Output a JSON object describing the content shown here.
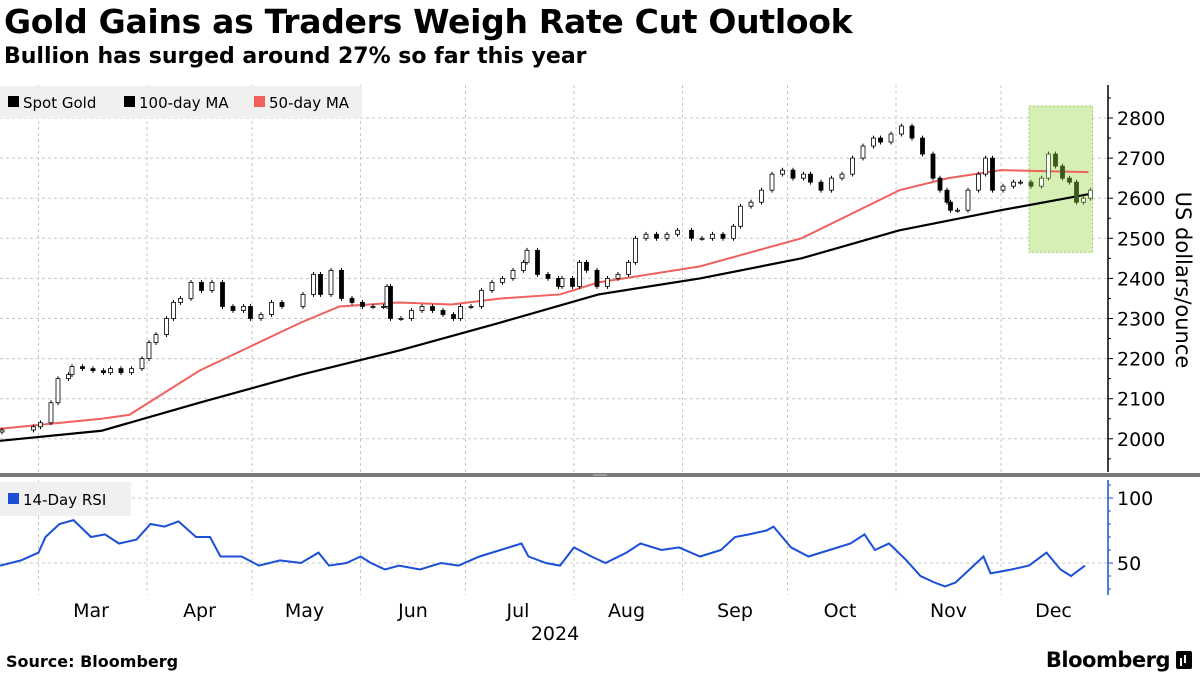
{
  "title": "Gold Gains as Traders Weigh Rate Cut Outlook",
  "subtitle": "Bullion has surged around 27% so far this year",
  "source": "Source: Bloomberg",
  "logo": "Bloomberg",
  "colors": {
    "spot": "#000000",
    "ma100": "#000000",
    "ma50": "#f0605d",
    "rsi": "#1a4fd6",
    "highlight": "#d6efb5",
    "highlight_border": "#9acd5a",
    "highlight_candle": "#3a5a1a"
  },
  "chart_data": [
    {
      "type": "candlestick",
      "x_unit": "days since Feb 19, 2024",
      "ylabel": "US dollars/ounce",
      "ylim": [
        1920,
        2920
      ],
      "yticks": [
        2000,
        2100,
        2200,
        2300,
        2400,
        2500,
        2600,
        2700,
        2800
      ],
      "legend": [
        "Spot Gold",
        "100-day MA",
        "50-day MA"
      ],
      "legend_placement": "top-left",
      "highlight": {
        "day_range": [
          294,
          311
        ],
        "value_range": [
          2465,
          2830
        ]
      },
      "spot_close": [
        [
          0,
          2022
        ],
        [
          9,
          2030
        ],
        [
          11,
          2040
        ],
        [
          14,
          2090
        ],
        [
          16,
          2150
        ],
        [
          19,
          2160
        ],
        [
          20,
          2180
        ],
        [
          23,
          2175
        ],
        [
          26,
          2170
        ],
        [
          29,
          2165
        ],
        [
          31,
          2175
        ],
        [
          34,
          2165
        ],
        [
          37,
          2175
        ],
        [
          40,
          2200
        ],
        [
          42,
          2240
        ],
        [
          44,
          2260
        ],
        [
          47,
          2300
        ],
        [
          49,
          2340
        ],
        [
          51,
          2350
        ],
        [
          54,
          2390
        ],
        [
          57,
          2370
        ],
        [
          60,
          2390
        ],
        [
          63,
          2330
        ],
        [
          66,
          2320
        ],
        [
          69,
          2330
        ],
        [
          71,
          2300
        ],
        [
          74,
          2310
        ],
        [
          77,
          2340
        ],
        [
          80,
          2330
        ],
        [
          86,
          2360
        ],
        [
          89,
          2410
        ],
        [
          91,
          2360
        ],
        [
          94,
          2420
        ],
        [
          97,
          2350
        ],
        [
          100,
          2340
        ],
        [
          103,
          2330
        ],
        [
          106,
          2330
        ],
        [
          109,
          2330
        ],
        [
          110,
          2380
        ],
        [
          111,
          2300
        ],
        [
          114,
          2300
        ],
        [
          117,
          2320
        ],
        [
          120,
          2330
        ],
        [
          123,
          2320
        ],
        [
          126,
          2310
        ],
        [
          129,
          2300
        ],
        [
          131,
          2330
        ],
        [
          134,
          2330
        ],
        [
          137,
          2370
        ],
        [
          140,
          2390
        ],
        [
          143,
          2400
        ],
        [
          146,
          2420
        ],
        [
          149,
          2440
        ],
        [
          150,
          2470
        ],
        [
          153,
          2410
        ],
        [
          156,
          2400
        ],
        [
          159,
          2380
        ],
        [
          160,
          2400
        ],
        [
          163,
          2380
        ],
        [
          165,
          2440
        ],
        [
          167,
          2420
        ],
        [
          170,
          2380
        ],
        [
          173,
          2400
        ],
        [
          176,
          2410
        ],
        [
          179,
          2440
        ],
        [
          181,
          2500
        ],
        [
          184,
          2510
        ],
        [
          187,
          2500
        ],
        [
          190,
          2510
        ],
        [
          193,
          2520
        ],
        [
          197,
          2500
        ],
        [
          200,
          2500
        ],
        [
          203,
          2510
        ],
        [
          206,
          2500
        ],
        [
          209,
          2530
        ],
        [
          211,
          2580
        ],
        [
          214,
          2590
        ],
        [
          217,
          2620
        ],
        [
          220,
          2660
        ],
        [
          223,
          2670
        ],
        [
          226,
          2650
        ],
        [
          229,
          2660
        ],
        [
          231,
          2640
        ],
        [
          234,
          2620
        ],
        [
          237,
          2650
        ],
        [
          240,
          2660
        ],
        [
          243,
          2700
        ],
        [
          246,
          2730
        ],
        [
          249,
          2750
        ],
        [
          251,
          2740
        ],
        [
          254,
          2760
        ],
        [
          257,
          2780
        ],
        [
          260,
          2750
        ],
        [
          263,
          2710
        ],
        [
          266,
          2650
        ],
        [
          268,
          2620
        ],
        [
          270,
          2590
        ],
        [
          271,
          2570
        ],
        [
          273,
          2570
        ],
        [
          276,
          2620
        ],
        [
          279,
          2660
        ],
        [
          281,
          2700
        ],
        [
          283,
          2620
        ],
        [
          286,
          2630
        ],
        [
          289,
          2640
        ],
        [
          291,
          2640
        ],
        [
          294,
          2630
        ],
        [
          297,
          2650
        ],
        [
          299,
          2710
        ],
        [
          301,
          2680
        ],
        [
          303,
          2650
        ],
        [
          305,
          2640
        ],
        [
          307,
          2590
        ],
        [
          309,
          2600
        ],
        [
          311,
          2620
        ]
      ],
      "ma100": [
        [
          0,
          1995
        ],
        [
          29,
          2020
        ],
        [
          57,
          2090
        ],
        [
          86,
          2160
        ],
        [
          114,
          2220
        ],
        [
          143,
          2290
        ],
        [
          171,
          2360
        ],
        [
          200,
          2400
        ],
        [
          229,
          2450
        ],
        [
          257,
          2520
        ],
        [
          286,
          2570
        ],
        [
          311,
          2610
        ]
      ],
      "ma50": [
        [
          0,
          2025
        ],
        [
          29,
          2050
        ],
        [
          37,
          2060
        ],
        [
          57,
          2170
        ],
        [
          86,
          2290
        ],
        [
          97,
          2330
        ],
        [
          114,
          2340
        ],
        [
          129,
          2335
        ],
        [
          143,
          2350
        ],
        [
          160,
          2360
        ],
        [
          171,
          2390
        ],
        [
          200,
          2430
        ],
        [
          229,
          2500
        ],
        [
          243,
          2560
        ],
        [
          257,
          2620
        ],
        [
          271,
          2650
        ],
        [
          286,
          2670
        ],
        [
          311,
          2665
        ]
      ]
    },
    {
      "type": "line",
      "legend": [
        "14-Day RSI"
      ],
      "ylim": [
        25,
        115
      ],
      "yticks": [
        50,
        100
      ],
      "values": [
        [
          0,
          48
        ],
        [
          6,
          52
        ],
        [
          11,
          58
        ],
        [
          13,
          70
        ],
        [
          17,
          80
        ],
        [
          21,
          83
        ],
        [
          26,
          70
        ],
        [
          30,
          72
        ],
        [
          34,
          65
        ],
        [
          39,
          68
        ],
        [
          43,
          80
        ],
        [
          47,
          78
        ],
        [
          51,
          82
        ],
        [
          56,
          70
        ],
        [
          60,
          70
        ],
        [
          63,
          55
        ],
        [
          69,
          55
        ],
        [
          74,
          48
        ],
        [
          80,
          52
        ],
        [
          86,
          50
        ],
        [
          91,
          58
        ],
        [
          94,
          48
        ],
        [
          99,
          50
        ],
        [
          103,
          55
        ],
        [
          106,
          50
        ],
        [
          110,
          45
        ],
        [
          114,
          48
        ],
        [
          120,
          45
        ],
        [
          126,
          50
        ],
        [
          131,
          48
        ],
        [
          137,
          55
        ],
        [
          143,
          60
        ],
        [
          149,
          65
        ],
        [
          151,
          55
        ],
        [
          156,
          50
        ],
        [
          160,
          48
        ],
        [
          164,
          62
        ],
        [
          169,
          55
        ],
        [
          173,
          50
        ],
        [
          179,
          58
        ],
        [
          183,
          65
        ],
        [
          189,
          60
        ],
        [
          194,
          62
        ],
        [
          200,
          55
        ],
        [
          206,
          60
        ],
        [
          210,
          70
        ],
        [
          214,
          72
        ],
        [
          219,
          75
        ],
        [
          221,
          78
        ],
        [
          226,
          62
        ],
        [
          231,
          55
        ],
        [
          237,
          60
        ],
        [
          243,
          65
        ],
        [
          247,
          72
        ],
        [
          250,
          60
        ],
        [
          254,
          65
        ],
        [
          259,
          52
        ],
        [
          263,
          40
        ],
        [
          267,
          35
        ],
        [
          270,
          32
        ],
        [
          273,
          35
        ],
        [
          277,
          45
        ],
        [
          281,
          55
        ],
        [
          283,
          42
        ],
        [
          289,
          45
        ],
        [
          294,
          48
        ],
        [
          299,
          58
        ],
        [
          303,
          45
        ],
        [
          306,
          40
        ],
        [
          310,
          48
        ]
      ]
    }
  ],
  "x_axis": {
    "months": [
      {
        "label": "Mar",
        "start": 11
      },
      {
        "label": "Apr",
        "start": 42
      },
      {
        "label": "May",
        "start": 72
      },
      {
        "label": "Jun",
        "start": 103
      },
      {
        "label": "Jul",
        "start": 133
      },
      {
        "label": "Aug",
        "start": 164
      },
      {
        "label": "Sep",
        "start": 195
      },
      {
        "label": "Oct",
        "start": 225
      },
      {
        "label": "Nov",
        "start": 256
      },
      {
        "label": "Dec",
        "start": 286
      }
    ],
    "year": "2024"
  }
}
